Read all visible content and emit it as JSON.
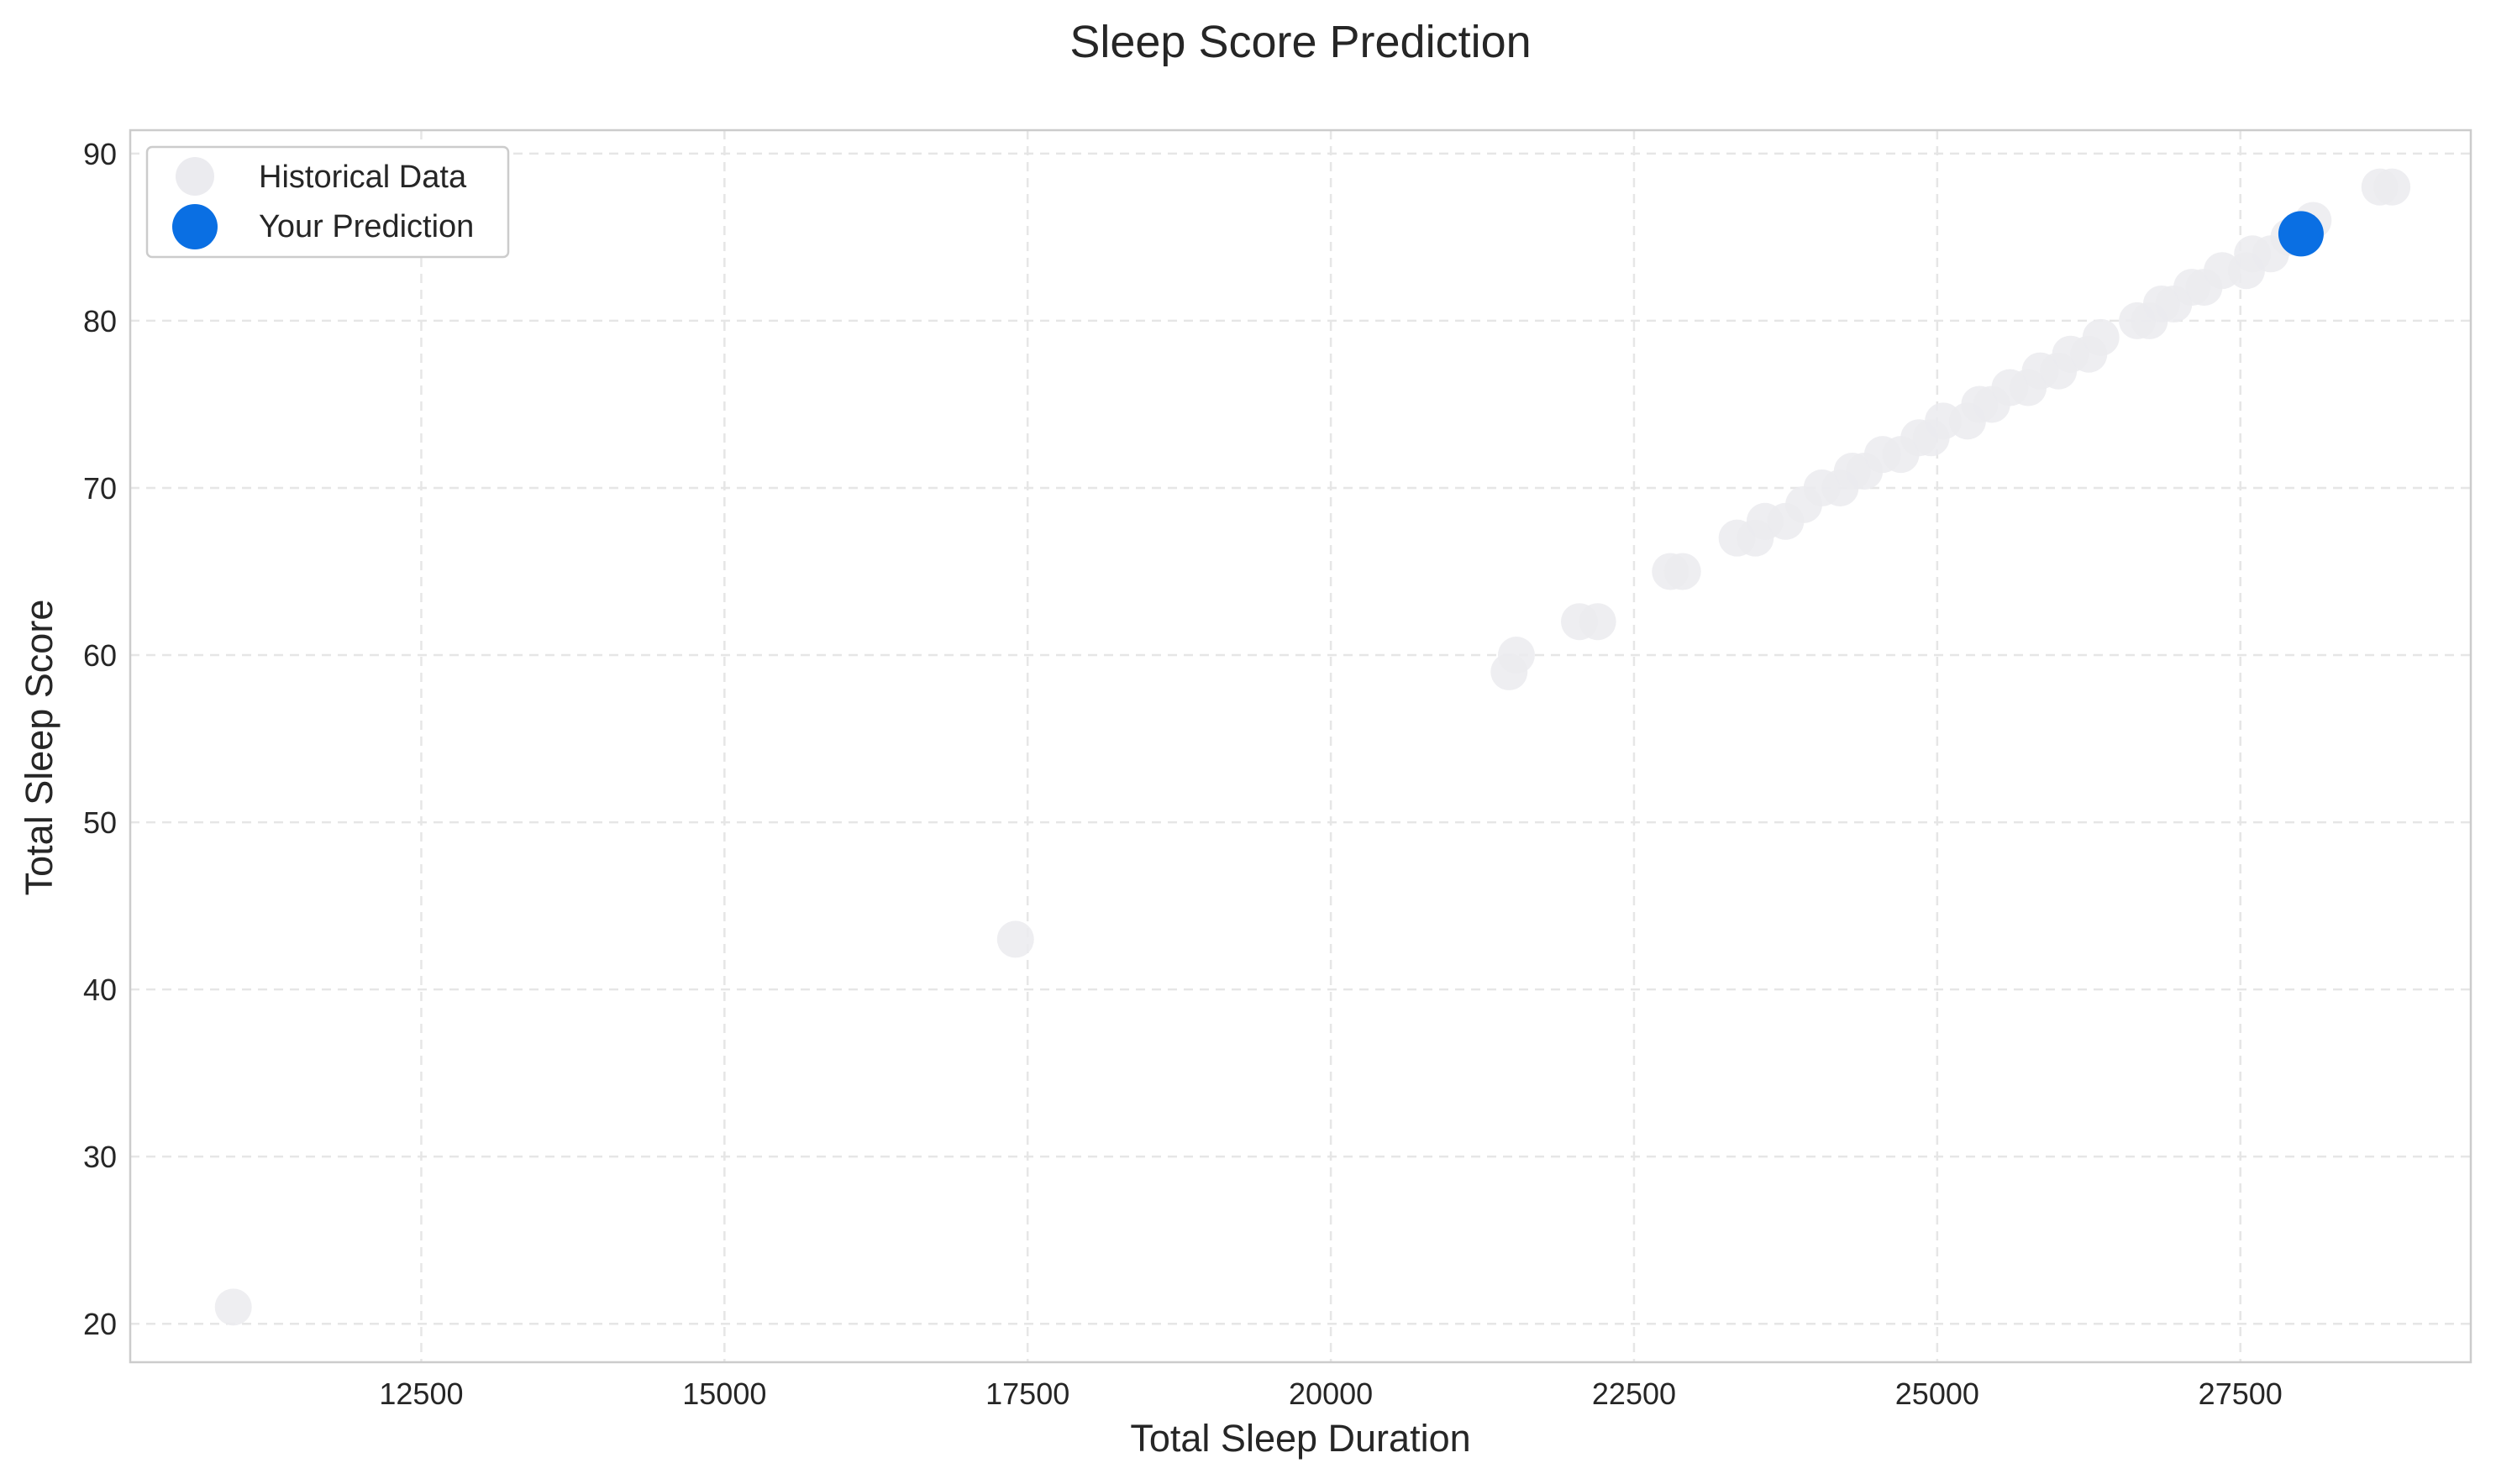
{
  "chart_data": {
    "type": "scatter",
    "title": "Sleep Score Prediction",
    "xlabel": "Total Sleep Duration",
    "ylabel": "Total Sleep Score",
    "xlim": [
      10100,
      29400
    ],
    "ylim": [
      17.7,
      91.4
    ],
    "xticks": [
      12500,
      15000,
      17500,
      20000,
      22500,
      25000,
      27500
    ],
    "yticks": [
      20,
      30,
      40,
      50,
      60,
      70,
      80,
      90
    ],
    "xtick_labels": [
      "12500",
      "15000",
      "17500",
      "20000",
      "22500",
      "25000",
      "27500"
    ],
    "ytick_labels": [
      "20",
      "30",
      "40",
      "50",
      "60",
      "70",
      "80",
      "90"
    ],
    "grid": true,
    "legend_position": "top-left",
    "series": [
      {
        "name": "Historical Data",
        "color": "#ebebef",
        "points": [
          [
            10950,
            21
          ],
          [
            17400,
            43
          ],
          [
            21470,
            59
          ],
          [
            21530,
            60
          ],
          [
            22050,
            62
          ],
          [
            22200,
            62
          ],
          [
            22800,
            65
          ],
          [
            22900,
            65
          ],
          [
            23350,
            67
          ],
          [
            23500,
            67
          ],
          [
            23580,
            68
          ],
          [
            23750,
            68
          ],
          [
            23900,
            69
          ],
          [
            24050,
            70
          ],
          [
            24200,
            70
          ],
          [
            24300,
            71
          ],
          [
            24400,
            71
          ],
          [
            24550,
            72
          ],
          [
            24700,
            72
          ],
          [
            24850,
            73
          ],
          [
            24950,
            73
          ],
          [
            25050,
            74
          ],
          [
            25250,
            74
          ],
          [
            25350,
            75
          ],
          [
            25450,
            75
          ],
          [
            25600,
            76
          ],
          [
            25750,
            76
          ],
          [
            25850,
            77
          ],
          [
            26000,
            77
          ],
          [
            26100,
            78
          ],
          [
            26250,
            78
          ],
          [
            26350,
            79
          ],
          [
            26650,
            80
          ],
          [
            26750,
            80
          ],
          [
            26850,
            81
          ],
          [
            26950,
            81
          ],
          [
            27100,
            82
          ],
          [
            27200,
            82
          ],
          [
            27350,
            83
          ],
          [
            27550,
            83
          ],
          [
            27600,
            84
          ],
          [
            27750,
            84
          ],
          [
            27900,
            85
          ],
          [
            28100,
            86
          ],
          [
            28650,
            88
          ],
          [
            28750,
            88
          ]
        ]
      },
      {
        "name": "Your Prediction",
        "color": "#0a6fe3",
        "points": [
          [
            28000,
            85.2
          ]
        ]
      }
    ]
  }
}
